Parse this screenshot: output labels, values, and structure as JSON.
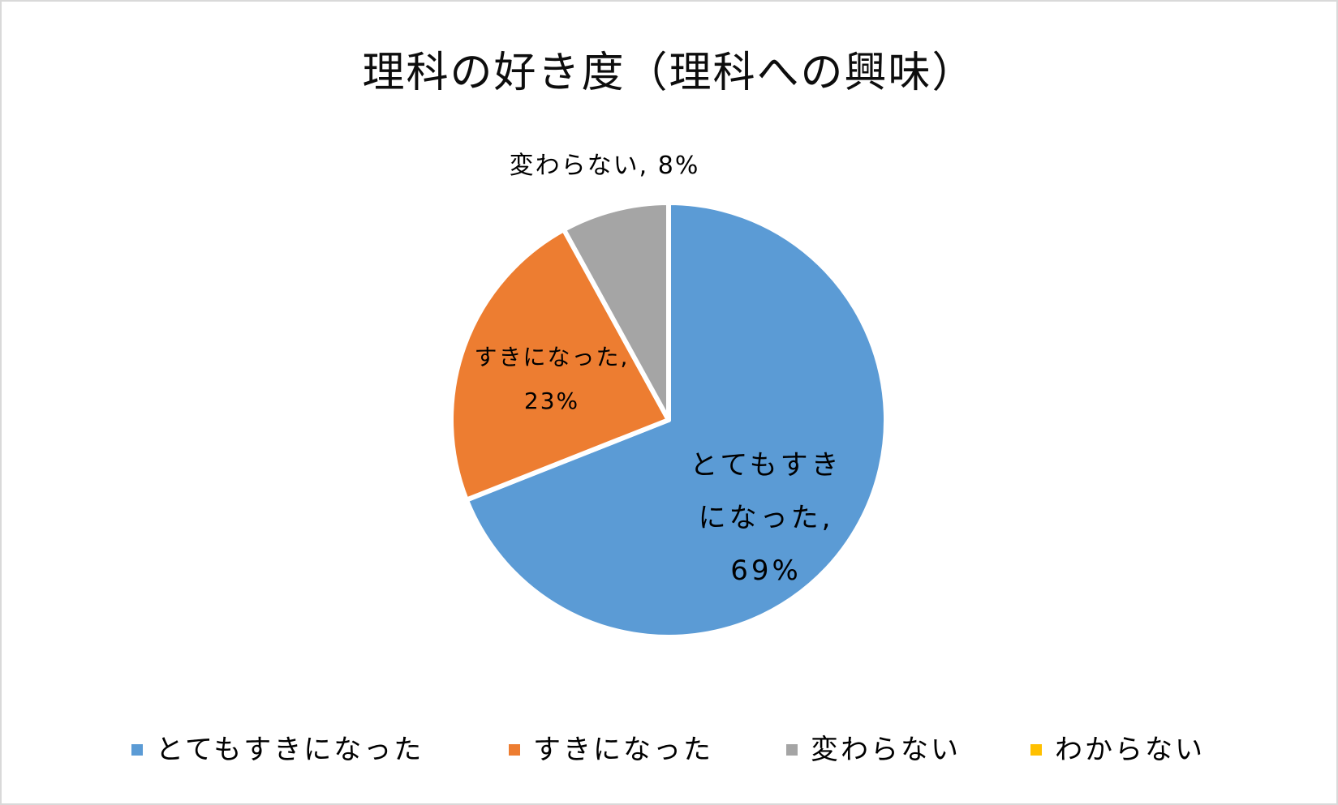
{
  "chart_data": {
    "type": "pie",
    "title": "理科の好き度（理科への興味）",
    "categories": [
      "とてもすきになった",
      "すきになった",
      "変わらない",
      "わからない"
    ],
    "values": [
      69,
      23,
      8,
      0
    ],
    "unit": "%",
    "colors": [
      "#5b9bd5",
      "#ed7d31",
      "#a5a5a5",
      "#ffc000"
    ],
    "data_labels": [
      "とてもすきになった, 69%",
      "すきになった, 23%",
      "変わらない, 8%",
      ""
    ],
    "start_angle": "12 o'clock",
    "direction": "clockwise",
    "legend_position": "bottom"
  },
  "title": "理科の好き度（理科への興味）",
  "labels": {
    "blue": {
      "line1": "とてもすき",
      "line2": "になった,",
      "line3": "69%"
    },
    "orange": {
      "line1": "すきになった,",
      "line2": "23%"
    },
    "gray": {
      "line1": "変わらない, 8%"
    }
  },
  "legend": [
    {
      "label": "とてもすきになった",
      "color": "#5b9bd5"
    },
    {
      "label": "すきになった",
      "color": "#ed7d31"
    },
    {
      "label": "変わらない",
      "color": "#a5a5a5"
    },
    {
      "label": "わからない",
      "color": "#ffc000"
    }
  ]
}
